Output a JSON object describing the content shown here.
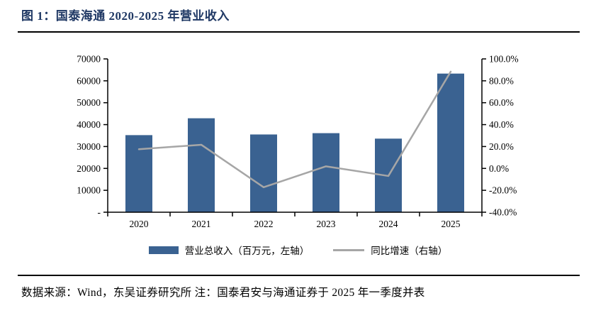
{
  "header": {
    "title": "图 1：国泰海通 2020-2025 年营业收入"
  },
  "footer": {
    "text": "数据来源：Wind，东吴证券研究所  注：国泰君安与海通证券于 2025 年一季度并表"
  },
  "colors": {
    "bar": "#3a6291",
    "line": "#a6a6a6",
    "title": "#1f3864",
    "axis": "#000000",
    "rule": "#000000"
  },
  "chart_data": {
    "type": "bar+line",
    "title": "国泰海通 2020-2025 年营业收入",
    "categories": [
      "2020",
      "2021",
      "2022",
      "2023",
      "2024",
      "2025"
    ],
    "series": [
      {
        "name": "营业总收入（百万元，左轴）",
        "type": "bar",
        "axis": "left",
        "values": [
          35200,
          42900,
          35500,
          36100,
          33600,
          63300
        ]
      },
      {
        "name": "同比增速（右轴）",
        "type": "line",
        "axis": "right",
        "values": [
          17.5,
          21.6,
          -17.2,
          1.9,
          -6.9,
          88.4
        ]
      }
    ],
    "left_axis": {
      "min": 0,
      "max": 70000,
      "tick_values": [
        70000,
        60000,
        50000,
        40000,
        30000,
        20000,
        10000,
        0
      ],
      "tick_labels": [
        "70000",
        "60000",
        "50000",
        "40000",
        "30000",
        "20000",
        "10000",
        "-"
      ]
    },
    "right_axis": {
      "min": -40,
      "max": 100,
      "tick_values": [
        100,
        80,
        60,
        40,
        20,
        0,
        -20,
        -40
      ],
      "tick_labels": [
        "100.0%",
        "80.0%",
        "60.0%",
        "40.0%",
        "20.0%",
        "0.0%",
        "-20.0%",
        "-40.0%"
      ]
    },
    "grid": "off",
    "legend_position": "bottom"
  }
}
